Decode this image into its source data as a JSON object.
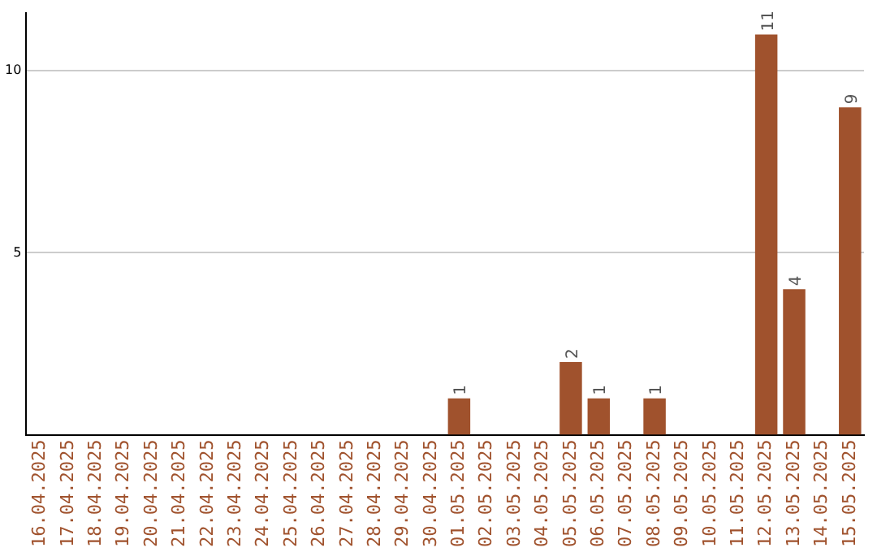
{
  "chart_data": {
    "type": "bar",
    "categories": [
      "16.04.2025",
      "17.04.2025",
      "18.04.2025",
      "19.04.2025",
      "20.04.2025",
      "21.04.2025",
      "22.04.2025",
      "23.04.2025",
      "24.04.2025",
      "25.04.2025",
      "26.04.2025",
      "27.04.2025",
      "28.04.2025",
      "29.04.2025",
      "30.04.2025",
      "01.05.2025",
      "02.05.2025",
      "03.05.2025",
      "04.05.2025",
      "05.05.2025",
      "06.05.2025",
      "07.05.2025",
      "08.05.2025",
      "09.05.2025",
      "10.05.2025",
      "11.05.2025",
      "12.05.2025",
      "13.05.2025",
      "14.05.2025",
      "15.05.2025"
    ],
    "values": [
      0,
      0,
      0,
      0,
      0,
      0,
      0,
      0,
      0,
      0,
      0,
      0,
      0,
      0,
      0,
      1,
      0,
      0,
      0,
      2,
      1,
      0,
      1,
      0,
      0,
      0,
      11,
      4,
      0,
      9
    ],
    "value_labels": [
      null,
      null,
      null,
      null,
      null,
      null,
      null,
      null,
      null,
      null,
      null,
      null,
      null,
      null,
      null,
      "1",
      null,
      null,
      null,
      "2",
      "1",
      null,
      "1",
      null,
      null,
      null,
      "11",
      "4",
      null,
      "9"
    ],
    "color": "#a0522d",
    "ylim": [
      0,
      11.6
    ],
    "yticks": [
      5,
      10
    ],
    "grid": "y",
    "legend": false
  }
}
